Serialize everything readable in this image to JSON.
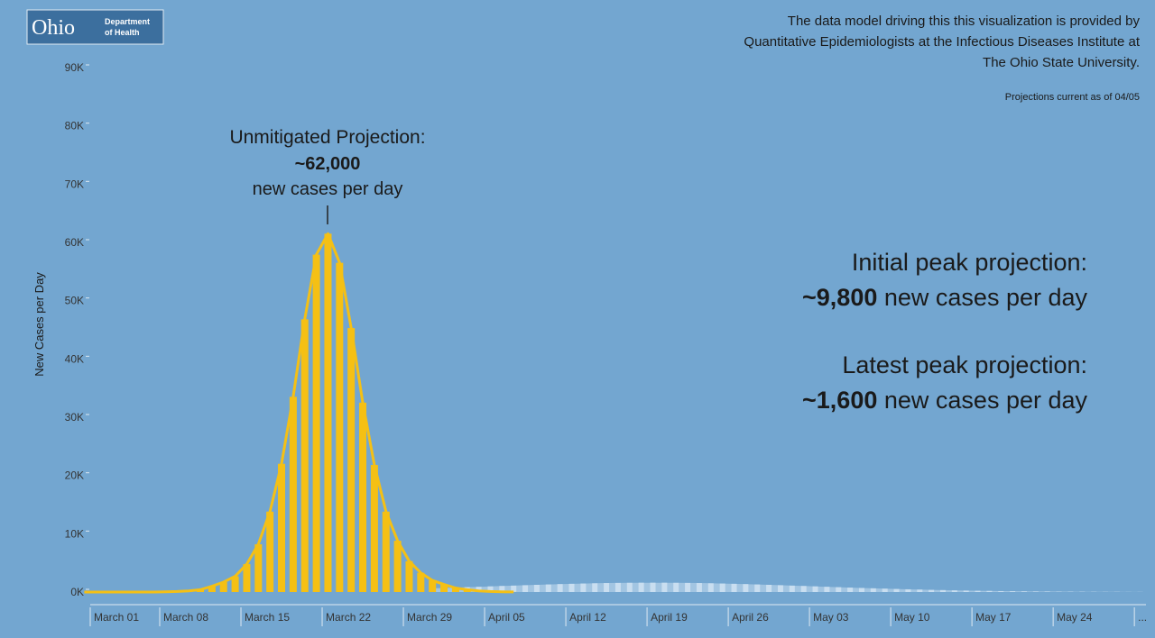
{
  "header": {
    "logo": "Ohio",
    "logo_sub": [
      "Department",
      "of Health"
    ],
    "credit": [
      "The data model driving this this visualization is provided by",
      "Quantitative Epidemiologists at the Infectious Diseases Institute at",
      "The Ohio State University."
    ],
    "as_of": "Projections current as of 04/05"
  },
  "chart_data": {
    "type": "bar",
    "ylabel": "New Cases per Day",
    "ylim": [
      0,
      90000
    ],
    "yticks": [
      {
        "value": 0,
        "label": "0K"
      },
      {
        "value": 10000,
        "label": "10K"
      },
      {
        "value": 20000,
        "label": "20K"
      },
      {
        "value": 30000,
        "label": "30K"
      },
      {
        "value": 40000,
        "label": "40K"
      },
      {
        "value": 50000,
        "label": "50K"
      },
      {
        "value": 60000,
        "label": "60K"
      },
      {
        "value": 70000,
        "label": "70K"
      },
      {
        "value": 80000,
        "label": "80K"
      },
      {
        "value": 90000,
        "label": "90K"
      }
    ],
    "categories": [
      "March 01",
      null,
      null,
      null,
      null,
      null,
      null,
      "March 08",
      null,
      null,
      null,
      null,
      null,
      null,
      "March 15",
      null,
      null,
      null,
      null,
      null,
      null,
      "March 22",
      null,
      null,
      null,
      null,
      null,
      null,
      "March 29",
      null,
      null,
      null,
      null,
      null,
      null,
      "April 05",
      null,
      null,
      null,
      null,
      null,
      null,
      "April 12",
      null,
      null,
      null,
      null,
      null,
      null,
      "April 19",
      null,
      null,
      null,
      null,
      null,
      null,
      "April 26",
      null,
      null,
      null,
      null,
      null,
      null,
      "May 03",
      null,
      null,
      null,
      null,
      null,
      null,
      "May 10",
      null,
      null,
      null,
      null,
      null,
      null,
      "May 17",
      null,
      null,
      null,
      null,
      null,
      null,
      "May 24",
      null,
      null,
      null,
      null,
      null,
      null,
      "..."
    ],
    "series": [
      {
        "color": "#c9def0",
        "values": [
          null,
          null,
          null,
          null,
          null,
          null,
          null,
          null,
          null,
          null,
          null,
          null,
          null,
          null,
          null,
          null,
          null,
          null,
          null,
          null,
          null,
          null,
          null,
          null,
          null,
          null,
          null,
          null,
          null,
          null,
          640,
          700,
          760,
          830,
          900,
          970,
          1040,
          1100,
          1170,
          1240,
          1300,
          1360,
          1410,
          1460,
          1500,
          1540,
          1560,
          1580,
          1600,
          1600,
          1600,
          1580,
          1560,
          1540,
          1500,
          1460,
          1410,
          1360,
          1300,
          1240,
          1170,
          1100,
          1040,
          970,
          900,
          830,
          760,
          700,
          640,
          580,
          520,
          470,
          420,
          370,
          330,
          290,
          250,
          220,
          190,
          160,
          140,
          120,
          100,
          90,
          70,
          60,
          50,
          40,
          30,
          30,
          20,
          20
        ]
      },
      {
        "color": "#f5c014",
        "values": [
          0,
          0,
          0,
          0,
          0,
          0,
          0,
          50,
          100,
          200,
          400,
          1000,
          1700,
          2700,
          4800,
          8200,
          13800,
          22000,
          33500,
          46800,
          57900,
          61500,
          56500,
          45300,
          32500,
          21800,
          13800,
          8800,
          5300,
          3300,
          2000,
          1300,
          700,
          400,
          200,
          100,
          50,
          20,
          null,
          null,
          null,
          null,
          null,
          null,
          null,
          null,
          null,
          null,
          null,
          null,
          null,
          null,
          null,
          null,
          null,
          null,
          null,
          null,
          null,
          null,
          null,
          null,
          null,
          null,
          null,
          null,
          null,
          null,
          null,
          null,
          null,
          null,
          null,
          null,
          null,
          null,
          null,
          null,
          null,
          null,
          null,
          null,
          null,
          null,
          null,
          null,
          null,
          null,
          null,
          null,
          null,
          null
        ]
      }
    ],
    "annotation": [
      "Unmitigated Projection:",
      "~62,000",
      "new cases per day"
    ],
    "summary": [
      {
        "title": "Initial peak projection:",
        "value": "~9,800",
        "unit": "new cases per day"
      },
      {
        "title": "Latest peak projection:",
        "value": "~1,600",
        "unit": "new cases per day"
      }
    ]
  }
}
